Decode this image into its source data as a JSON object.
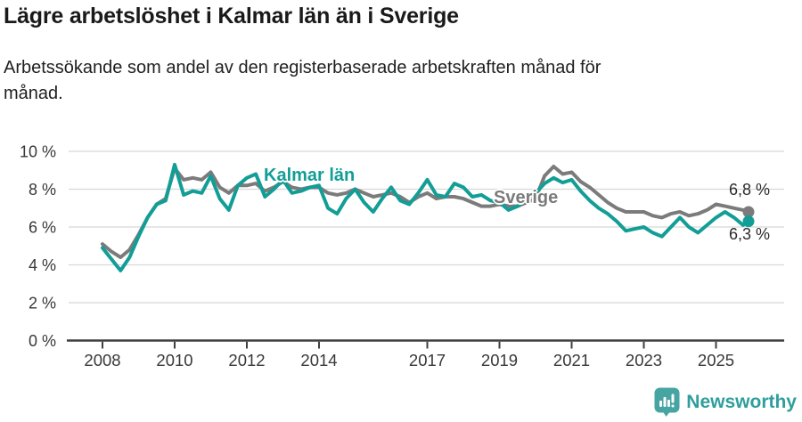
{
  "header": {
    "title": "Lägre arbetslöshet i Kalmar län än i Sverige",
    "subtitle": "Arbetssökande som andel av den registerbaserade arbetskraften månad för månad."
  },
  "chart_data": {
    "type": "line",
    "title": "Lägre arbetslöshet i Kalmar län än i Sverige",
    "subtitle": "Arbetssökande som andel av den registerbaserade arbetskraften månad för månad.",
    "unit": "%",
    "x_unit": "year",
    "grid": "horizontal",
    "legend_position": "inline-labels",
    "ylim": [
      0,
      10
    ],
    "yticks": [
      0,
      2,
      4,
      6,
      8,
      10
    ],
    "ytick_labels": [
      "0 %",
      "2 %",
      "4 %",
      "6 %",
      "8 %",
      "10 %"
    ],
    "xticks": [
      2008,
      2010,
      2012,
      2014,
      2017,
      2019,
      2021,
      2023,
      2025
    ],
    "x": [
      2008,
      2008.25,
      2008.5,
      2008.75,
      2009,
      2009.25,
      2009.5,
      2009.75,
      2010,
      2010.25,
      2010.5,
      2010.75,
      2011,
      2011.25,
      2011.5,
      2011.75,
      2012,
      2012.25,
      2012.5,
      2012.75,
      2013,
      2013.25,
      2013.5,
      2013.75,
      2014,
      2014.25,
      2014.5,
      2014.75,
      2015,
      2015.25,
      2015.5,
      2015.75,
      2016,
      2016.25,
      2016.5,
      2016.75,
      2017,
      2017.25,
      2017.5,
      2017.75,
      2018,
      2018.25,
      2018.5,
      2018.75,
      2019,
      2019.25,
      2019.5,
      2019.75,
      2020,
      2020.25,
      2020.5,
      2020.75,
      2021,
      2021.25,
      2021.5,
      2021.75,
      2022,
      2022.25,
      2022.5,
      2022.75,
      2023,
      2023.25,
      2023.5,
      2023.75,
      2024,
      2024.25,
      2024.5,
      2024.75,
      2025,
      2025.25,
      2025.5,
      2025.75,
      2025.9
    ],
    "series": [
      {
        "name": "Sverige",
        "color": "#7b7b7b",
        "end_label": "6,8 %",
        "end_value": 6.8,
        "values": [
          5.1,
          4.7,
          4.4,
          4.8,
          5.6,
          6.5,
          7.2,
          7.5,
          9.1,
          8.5,
          8.6,
          8.5,
          8.9,
          8.1,
          7.8,
          8.2,
          8.2,
          8.3,
          7.9,
          8.1,
          8.4,
          8.1,
          8.0,
          8.1,
          8.1,
          7.8,
          7.7,
          7.8,
          8.0,
          7.8,
          7.6,
          7.7,
          7.8,
          7.6,
          7.3,
          7.6,
          7.8,
          7.5,
          7.6,
          7.6,
          7.5,
          7.3,
          7.1,
          7.1,
          7.2,
          7.1,
          7.1,
          7.3,
          7.5,
          8.7,
          9.2,
          8.8,
          8.9,
          8.4,
          8.1,
          7.7,
          7.3,
          7.0,
          6.8,
          6.8,
          6.8,
          6.6,
          6.5,
          6.7,
          6.8,
          6.6,
          6.7,
          6.9,
          7.2,
          7.1,
          7.0,
          6.9,
          6.8
        ]
      },
      {
        "name": "Kalmar län",
        "color": "#129e96",
        "end_label": "6,3 %",
        "end_value": 6.3,
        "values": [
          4.9,
          4.3,
          3.7,
          4.4,
          5.5,
          6.5,
          7.2,
          7.4,
          9.3,
          7.7,
          7.9,
          7.8,
          8.7,
          7.5,
          6.9,
          8.2,
          8.6,
          8.8,
          7.6,
          8.0,
          8.5,
          7.8,
          7.9,
          8.1,
          8.2,
          7.0,
          6.7,
          7.5,
          8.0,
          7.3,
          6.8,
          7.5,
          8.1,
          7.4,
          7.2,
          7.8,
          8.5,
          7.7,
          7.6,
          8.3,
          8.1,
          7.6,
          7.7,
          7.4,
          7.3,
          6.9,
          7.1,
          7.5,
          7.8,
          8.3,
          8.6,
          8.35,
          8.5,
          7.9,
          7.4,
          7.0,
          6.7,
          6.3,
          5.8,
          5.9,
          6.0,
          5.7,
          5.5,
          6.0,
          6.5,
          6.0,
          5.7,
          6.1,
          6.5,
          6.8,
          6.5,
          6.1,
          6.3
        ]
      }
    ]
  },
  "footer": {
    "brand": "Newsworthy",
    "logo_color": "#46a5a2",
    "brand_color": "#2f9e9c"
  }
}
